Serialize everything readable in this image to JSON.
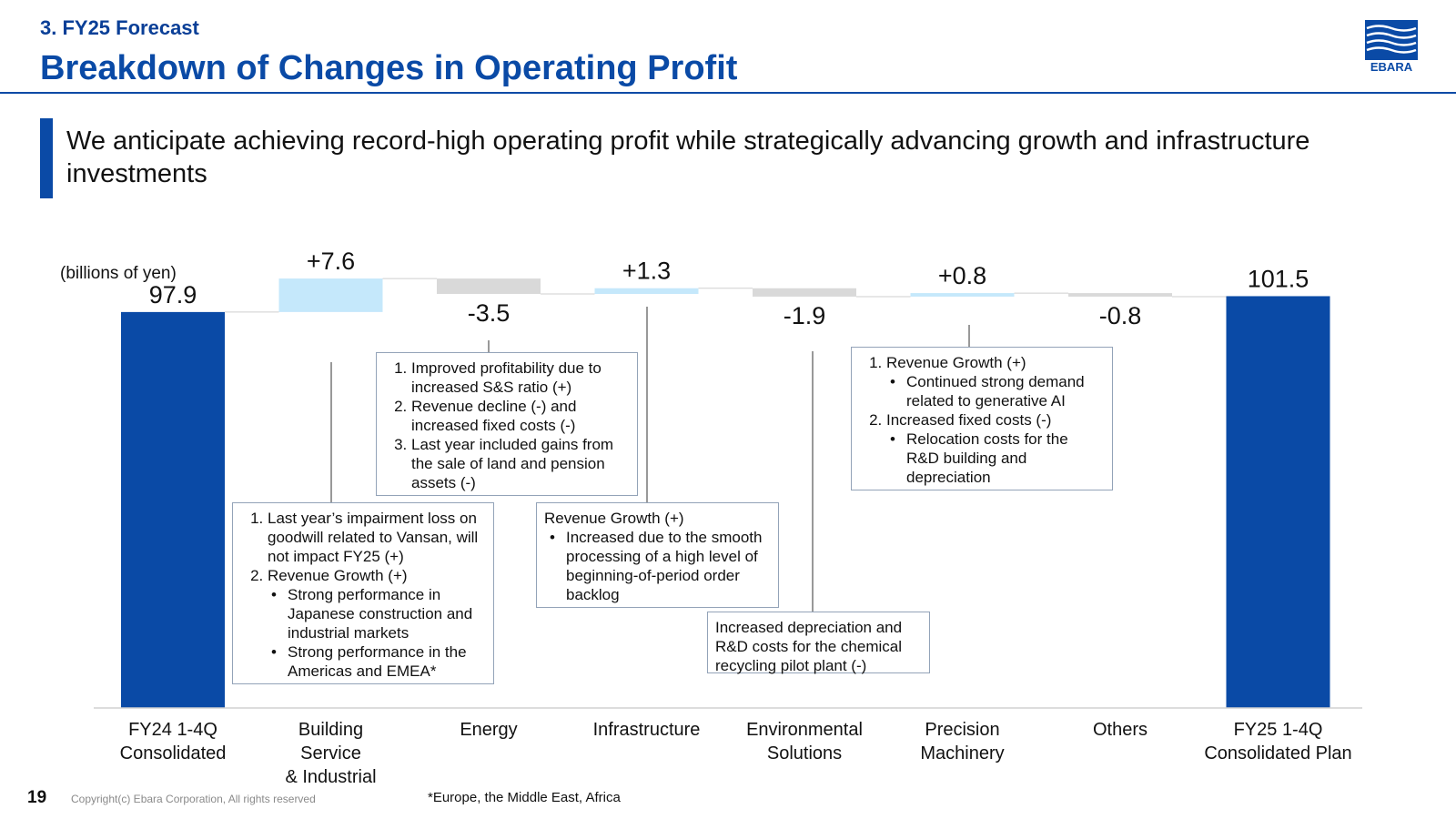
{
  "header": {
    "section": "3. FY25 Forecast",
    "title": "Breakdown of Changes in Operating Profit",
    "logo_text": "EBARA"
  },
  "lead": "We anticipate achieving record-high operating profit while strategically advancing growth and infrastructure investments",
  "unit_label": "(billions of yen)",
  "colors": {
    "total": "#0a4aa6",
    "increase": "#c5e8fb",
    "decrease": "#d9d9d9",
    "accent": "#0a4aa6"
  },
  "chart_data": {
    "type": "waterfall",
    "ylim": [
      0,
      110
    ],
    "categories": [
      "FY24 1-4Q Consolidated",
      "Building Service & Industrial",
      "Energy",
      "Infrastructure",
      "Environmental Solutions",
      "Precision Machinery",
      "Others",
      "FY25 1-4Q Consolidated Plan"
    ],
    "category_lines": [
      [
        "FY24 1-4Q",
        "Consolidated"
      ],
      [
        "Building",
        "Service",
        "& Industrial"
      ],
      [
        "Energy"
      ],
      [
        "Infrastructure"
      ],
      [
        "Environmental",
        "Solutions"
      ],
      [
        "Precision",
        "Machinery"
      ],
      [
        "Others"
      ],
      [
        "FY25 1-4Q",
        "Consolidated Plan"
      ]
    ],
    "values": [
      97.9,
      7.6,
      -3.5,
      1.3,
      -1.9,
      0.8,
      -0.8,
      101.5
    ],
    "kinds": [
      "total",
      "increase",
      "decrease",
      "increase",
      "decrease",
      "increase",
      "decrease",
      "total"
    ],
    "labels": [
      "97.9",
      "+7.6",
      "-3.5",
      "+1.3",
      "-1.9",
      "+0.8",
      "-0.8",
      "101.5"
    ]
  },
  "notes": {
    "building": {
      "items": [
        {
          "text": "Last year’s impairment loss on goodwill related to Vansan, will not impact FY25 (+)"
        },
        {
          "text": "Revenue Growth (+)",
          "bullets": [
            "Strong performance in Japanese construction and industrial markets",
            "Strong performance in the Americas and EMEA*"
          ]
        }
      ]
    },
    "energy": {
      "items": [
        {
          "text": "Improved profitability due to increased S&S ratio (+)"
        },
        {
          "text": "Revenue decline (-) and increased fixed costs (-)"
        },
        {
          "text": "Last year included gains from the sale of land and pension assets (-)"
        }
      ]
    },
    "infrastructure": {
      "heading": "Revenue Growth (+)",
      "bullets": [
        "Increased due to the smooth processing of a high level of beginning-of-period order backlog"
      ]
    },
    "environmental": {
      "text": "Increased depreciation and R&D costs for the chemical recycling pilot plant (-)"
    },
    "precision": {
      "items": [
        {
          "text": "Revenue Growth (+)",
          "bullets": [
            "Continued strong demand related to generative AI"
          ]
        },
        {
          "text": "Increased fixed costs (-)",
          "bullets": [
            "Relocation costs for the R&D building and depreciation"
          ]
        }
      ]
    }
  },
  "footer": {
    "page": "19",
    "copyright": "Copyright(c) Ebara Corporation, All rights reserved",
    "footnote": "*Europe, the Middle East, Africa"
  }
}
